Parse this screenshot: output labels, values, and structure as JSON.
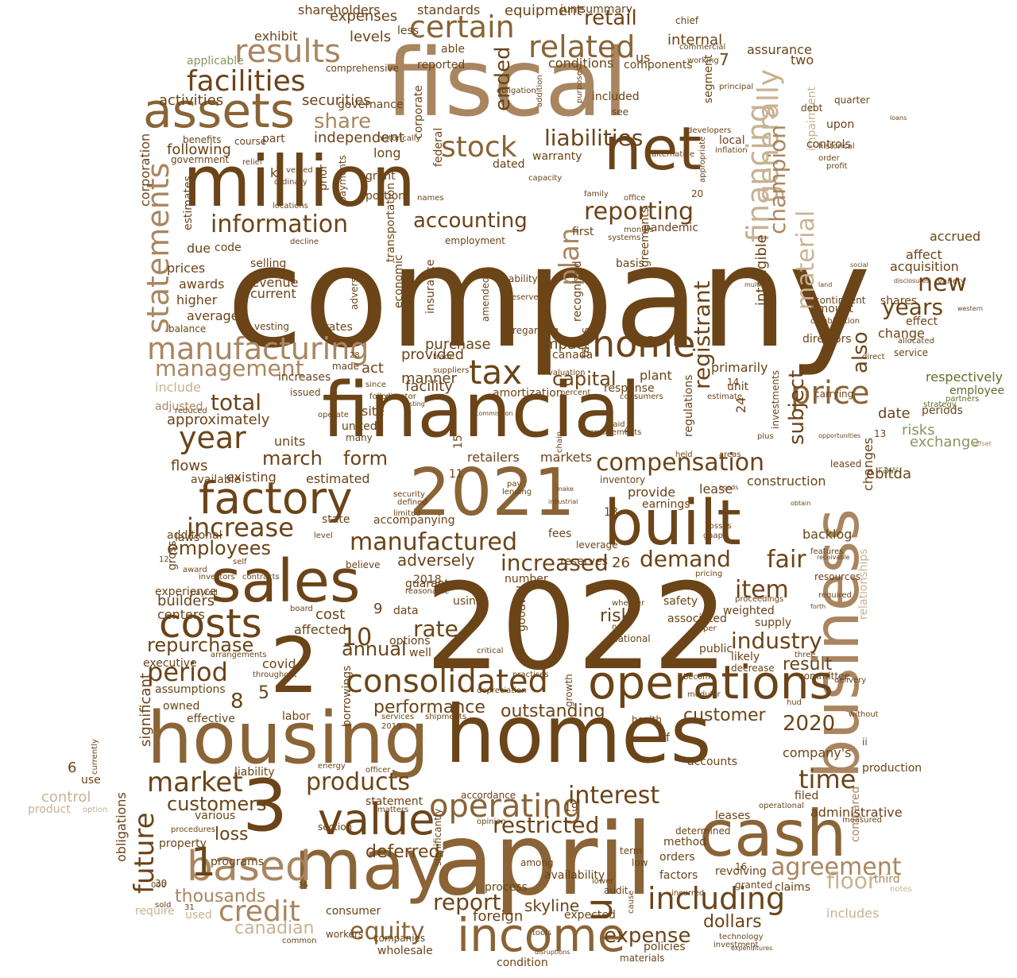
{
  "palette": {
    "dark": "#6b4418",
    "mid": "#8a6436",
    "tan": "#a98660",
    "light": "#c8b292",
    "sage": "#8a9560",
    "olive": "#5e6e2a",
    "pale": "#d8d2c4"
  },
  "words": [
    "company",
    "2022",
    "april",
    "fiscal",
    "homes",
    "housing",
    "financial",
    "million",
    "2021",
    "built",
    "business",
    "cash",
    "may",
    "sales",
    "3",
    "2",
    "net",
    "assets",
    "income",
    "operations",
    "factory",
    "value",
    "costs",
    "based",
    "home",
    "tax",
    "consolidated",
    "manufacturing",
    "including",
    "price",
    "operating",
    "financing",
    "results",
    "certain",
    "related",
    "facilities",
    "statements",
    "stock",
    "liabilities",
    "information",
    "reporting",
    "compensation",
    "manufactured",
    "increase",
    "year",
    "market",
    "credit",
    "equity",
    "expense",
    "products",
    "interest",
    "period",
    "agreement",
    "industry",
    "time",
    "item",
    "fair",
    "demand",
    "increased",
    "employees",
    "u",
    "generally",
    "material",
    "champion",
    "plan",
    "accounting",
    "registrant",
    "management",
    "total",
    "new",
    "years",
    "customers",
    "report",
    "restricted",
    "floor",
    "dollars",
    "future",
    "deferred",
    "thousands",
    "canadian",
    "subject",
    "also",
    "march",
    "form",
    "repurchase",
    "annual",
    "rate",
    "performance",
    "loss",
    "1",
    "10",
    "8",
    "5",
    "6",
    "7",
    "2020",
    "capital",
    "ended",
    "share",
    "retail",
    "following",
    "adversely",
    "risk",
    "result",
    "customer",
    "significant",
    "outstanding",
    "skyline",
    "foreign",
    "acquisition",
    "affect",
    "accrued",
    "respectively",
    "employee",
    "periods",
    "exchange",
    "risks",
    "date",
    "changes",
    "construction",
    "lease",
    "provide",
    "earnings",
    "inventory",
    "retailers",
    "markets",
    "estimated",
    "existing",
    "flows",
    "available",
    "units",
    "approximately",
    "adjusted",
    "include",
    "manner",
    "act",
    "facility",
    "provided",
    "purchase",
    "impact",
    "primarily",
    "unit",
    "plant",
    "response",
    "amortization",
    "amount",
    "directors",
    "terms",
    "intangible",
    "investments",
    "regulations",
    "impairment",
    "segment",
    "internal",
    "assurance",
    "conditions",
    "components",
    "equipment",
    "expenses",
    "levels",
    "exhibit",
    "securities",
    "governance",
    "activities",
    "applicable",
    "comprehensive",
    "standards",
    "shareholders",
    "june",
    "summary",
    "chief",
    "commercial",
    "working",
    "two",
    "us",
    "able",
    "less",
    "reported",
    "independent",
    "long",
    "grant",
    "portion",
    "names",
    "payments",
    "prior",
    "k",
    "vested",
    "part",
    "course",
    "benefits",
    "government",
    "corporation",
    "estimates",
    "prices",
    "due",
    "code",
    "selling",
    "revenue",
    "current",
    "average",
    "higher",
    "awards",
    "balance",
    "vesting",
    "rates",
    "made",
    "increases",
    "issued",
    "site",
    "united",
    "many",
    "economic",
    "insurance",
    "transportation",
    "corporate",
    "federal",
    "dated",
    "warranty",
    "local",
    "included",
    "see",
    "debt",
    "upon",
    "controls",
    "profit",
    "quarter",
    "historical",
    "inflation",
    "order",
    "family",
    "office",
    "first",
    "months",
    "systems",
    "pandemic",
    "basis",
    "agreements",
    "recognized",
    "taxes",
    "amended",
    "regarding",
    "canada",
    "valuation",
    "percent",
    "consumers",
    "estimate",
    "raw",
    "operate",
    "self",
    "additional",
    "laws",
    "state",
    "accompanying",
    "level",
    "believe",
    "guarantees",
    "reasonable",
    "data",
    "using",
    "number",
    "goodwill",
    "options",
    "well",
    "builders",
    "centers",
    "investors",
    "payroll",
    "award",
    "contracts",
    "12",
    "experience",
    "gross",
    "fees",
    "limited",
    "defined",
    "security",
    "lending",
    "pay",
    "leverage",
    "gaap",
    "losses",
    "backlog",
    "features",
    "resources",
    "pricing",
    "required",
    "weighted",
    "supply",
    "safety",
    "associated",
    "whether",
    "non",
    "national",
    "per",
    "public",
    "likely",
    "decrease",
    "three",
    "committee",
    "delivery",
    "become",
    "modular",
    "hud",
    "production",
    "company's",
    "accounts",
    "compared",
    "filed",
    "administrative",
    "leases",
    "determined",
    "term",
    "method",
    "orders",
    "factors",
    "revolving",
    "granted",
    "claims",
    "includes",
    "third",
    "notes",
    "incurred",
    "expected",
    "policies",
    "materials",
    "condition",
    "wholesale",
    "companies",
    "consumer",
    "workers",
    "common",
    "used",
    "require",
    "31",
    "sold",
    "property",
    "programs",
    "various",
    "procedures",
    "significantly",
    "opinion",
    "matters",
    "section",
    "accordance",
    "statement",
    "liability",
    "officer",
    "energy",
    "borrowings",
    "services",
    "shipments",
    "labor",
    "effective",
    "owned",
    "assumptions",
    "executive",
    "arrangements",
    "affected",
    "board",
    "cost",
    "covid",
    "throughout",
    "critical",
    "practices",
    "depreciation",
    "growth",
    "health",
    "availability",
    "process",
    "among",
    "audit",
    "low",
    "lower",
    "cause",
    "product",
    "option",
    "control",
    "use",
    "obligations",
    "currently",
    "relationships",
    "contingent",
    "combination",
    "shares",
    "change",
    "effect",
    "allocated",
    "service",
    "direct",
    "carrying",
    "opportunities",
    "leased",
    "variety",
    "western",
    "disclosures",
    "principal",
    "developers",
    "alternative",
    "appropriate",
    "capacity",
    "historically",
    "obligation",
    "addition",
    "purposes",
    "relief",
    "ordinary",
    "locations",
    "decline",
    "employment",
    "adverse",
    "ability",
    "reserve",
    "trade",
    "suppliers",
    "since",
    "follows",
    "director",
    "testing",
    "reduced",
    "commission",
    "paid",
    "improvements",
    "held",
    "areas",
    "plus",
    "obtain",
    "bonds",
    "forth",
    "receivable",
    "proceedings",
    "multi",
    "land",
    "social",
    "loans",
    "tools",
    "disruptions",
    "technology",
    "expenditures",
    "investment",
    "operational",
    "measured",
    "without",
    "ebitda",
    "9",
    "4",
    "11",
    "13",
    "14",
    "15",
    "16",
    "18",
    "19",
    "20",
    "24",
    "26",
    "28",
    "30",
    "36",
    "000",
    "ii",
    "f",
    "2018",
    "2019",
    "reserves",
    "strategy",
    "partners",
    "offset",
    "chain",
    "make",
    "industrial"
  ]
}
